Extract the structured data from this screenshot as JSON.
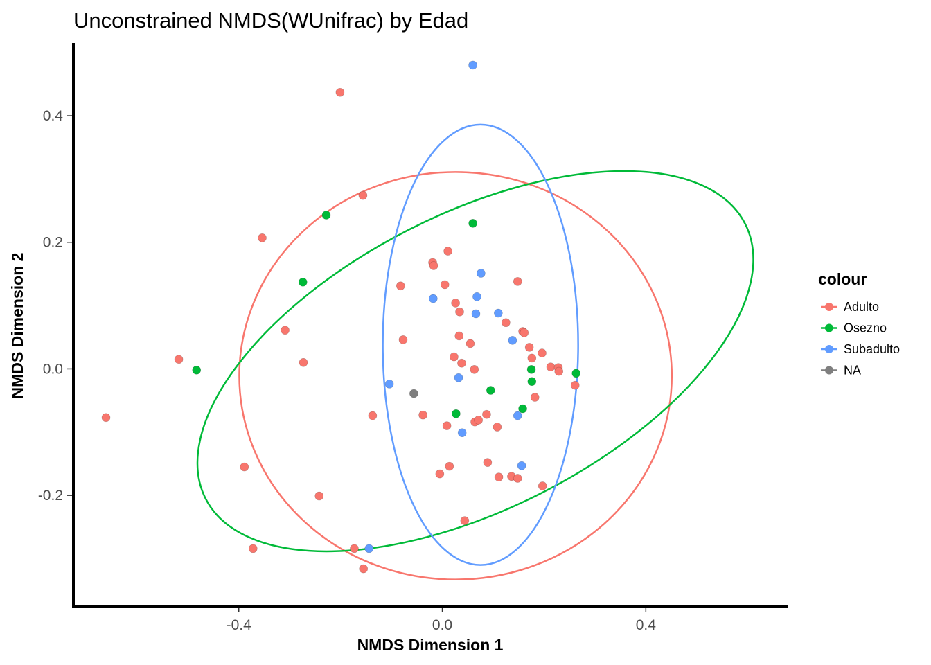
{
  "chart_data": {
    "type": "scatter",
    "title": "Unconstrained NMDS(WUnifrac) by Edad",
    "xlabel": "NMDS Dimension 1",
    "ylabel": "NMDS Dimension 2",
    "xlim": [
      -0.725,
      0.68
    ],
    "ylim": [
      -0.375,
      0.515
    ],
    "xticks": [
      -0.4,
      0.0,
      0.4
    ],
    "xtick_labels": [
      "-0.4",
      "0.0",
      "0.4"
    ],
    "yticks": [
      -0.2,
      0.0,
      0.2,
      0.4
    ],
    "ytick_labels": [
      "-0.2",
      "0.0",
      "0.2",
      "0.4"
    ],
    "grid": false,
    "legend": {
      "title": "colour",
      "placement": "right",
      "entries": [
        {
          "label": "Adulto",
          "color": "#F8766D"
        },
        {
          "label": "Osezno",
          "color": "#00BA38"
        },
        {
          "label": "Subadulto",
          "color": "#619CFF"
        },
        {
          "label": "NA",
          "color": "#7F7F7F"
        }
      ]
    },
    "series": [
      {
        "name": "Adulto",
        "color": "#F8766D",
        "points": [
          [
            -0.661,
            -0.077
          ],
          [
            -0.518,
            0.015
          ],
          [
            -0.389,
            -0.155
          ],
          [
            -0.372,
            -0.284
          ],
          [
            -0.354,
            0.207
          ],
          [
            -0.309,
            0.061
          ],
          [
            -0.273,
            0.01
          ],
          [
            -0.242,
            -0.201
          ],
          [
            -0.201,
            0.437
          ],
          [
            -0.173,
            -0.284
          ],
          [
            -0.156,
            0.274
          ],
          [
            -0.155,
            -0.316
          ],
          [
            -0.137,
            -0.074
          ],
          [
            -0.082,
            0.131
          ],
          [
            -0.077,
            0.046
          ],
          [
            -0.038,
            -0.073
          ],
          [
            -0.019,
            0.168
          ],
          [
            -0.017,
            0.163
          ],
          [
            -0.005,
            -0.166
          ],
          [
            0.005,
            0.133
          ],
          [
            0.009,
            -0.09
          ],
          [
            0.011,
            0.186
          ],
          [
            0.014,
            -0.154
          ],
          [
            0.023,
            0.019
          ],
          [
            0.026,
            0.104
          ],
          [
            0.033,
            0.052
          ],
          [
            0.034,
            0.09
          ],
          [
            0.038,
            0.009
          ],
          [
            0.044,
            -0.24
          ],
          [
            0.055,
            0.04
          ],
          [
            0.063,
            -0.001
          ],
          [
            0.064,
            -0.084
          ],
          [
            0.071,
            -0.081
          ],
          [
            0.087,
            -0.072
          ],
          [
            0.089,
            -0.148
          ],
          [
            0.108,
            -0.092
          ],
          [
            0.111,
            -0.171
          ],
          [
            0.125,
            0.073
          ],
          [
            0.136,
            -0.17
          ],
          [
            0.148,
            -0.173
          ],
          [
            0.148,
            0.138
          ],
          [
            0.158,
            0.059
          ],
          [
            0.161,
            0.057
          ],
          [
            0.171,
            0.034
          ],
          [
            0.176,
            0.017
          ],
          [
            0.182,
            -0.045
          ],
          [
            0.196,
            0.025
          ],
          [
            0.197,
            -0.185
          ],
          [
            0.213,
            0.003
          ],
          [
            0.228,
            0.002
          ],
          [
            0.229,
            -0.004
          ],
          [
            0.261,
            -0.026
          ]
        ]
      },
      {
        "name": "Osezno",
        "color": "#00BA38",
        "points": [
          [
            -0.483,
            -0.002
          ],
          [
            -0.274,
            0.137
          ],
          [
            -0.228,
            0.243
          ],
          [
            0.027,
            -0.071
          ],
          [
            0.06,
            0.23
          ],
          [
            0.095,
            -0.034
          ],
          [
            0.158,
            -0.063
          ],
          [
            0.175,
            -0.001
          ],
          [
            0.176,
            -0.02
          ],
          [
            0.263,
            -0.007
          ]
        ]
      },
      {
        "name": "Subadulto",
        "color": "#619CFF",
        "points": [
          [
            -0.144,
            -0.284
          ],
          [
            -0.104,
            -0.024
          ],
          [
            -0.018,
            0.111
          ],
          [
            0.032,
            -0.014
          ],
          [
            0.039,
            -0.101
          ],
          [
            0.06,
            0.48
          ],
          [
            0.066,
            0.087
          ],
          [
            0.068,
            0.114
          ],
          [
            0.076,
            0.151
          ],
          [
            0.11,
            0.088
          ],
          [
            0.138,
            0.045
          ],
          [
            0.148,
            -0.074
          ],
          [
            0.156,
            -0.153
          ]
        ]
      },
      {
        "name": "NA",
        "color": "#7F7F7F",
        "points": [
          [
            -0.056,
            -0.039
          ]
        ]
      }
    ],
    "ellipses": [
      {
        "group": "Adulto",
        "color": "#F8766D",
        "center": [
          0.026,
          -0.011
        ],
        "rx": 0.425,
        "ry": 0.322,
        "angle_deg": 0
      },
      {
        "group": "Osezno",
        "color": "#00BA38",
        "center": [
          0.065,
          0.012
        ],
        "rx": 0.595,
        "ry": 0.233,
        "angle_deg": -27
      },
      {
        "group": "Subadulto",
        "color": "#619CFF",
        "center": [
          0.075,
          0.038
        ],
        "rx": 0.192,
        "ry": 0.348,
        "angle_deg": 0
      }
    ]
  }
}
